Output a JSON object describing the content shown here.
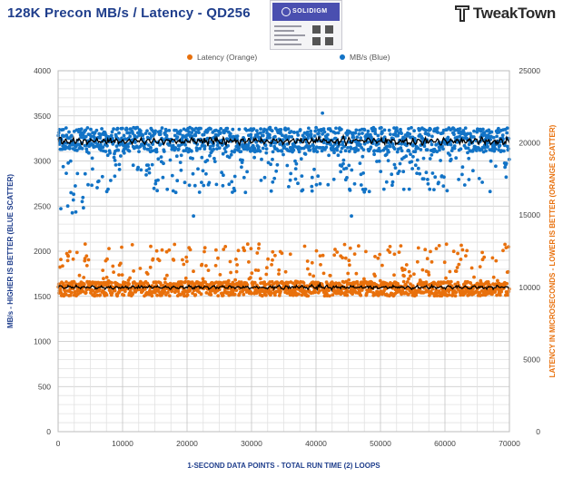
{
  "header": {
    "title": "128K Precon MB/s / Latency - QD256",
    "brand_logo_name": "TweakTown",
    "product_badge_text": "SOLIDIGM"
  },
  "colors": {
    "title": "#1f3e8c",
    "mbs_series": "#1273c6",
    "latency_series": "#e8700c",
    "average_line": "#000000",
    "grid": "#d0d0d0"
  },
  "chart_data": {
    "type": "scatter",
    "title": "128K Precon MB/s / Latency - QD256",
    "xlabel": "1-SECOND  DATA POINTS - TOTAL RUN TIME (2) LOOPS",
    "ylabel_left": "MB/s - HIGHER IS BETTER (BLUE SCATTER)",
    "ylabel_right": "LATENCY IN MICROSECONDS - LOWER IS BETTER (ORANGE SCATTER)",
    "xlim": [
      0,
      70000
    ],
    "ylim_left": [
      0,
      4000
    ],
    "ylim_right": [
      0,
      25000
    ],
    "x_ticks": [
      "0",
      "10000",
      "20000",
      "30000",
      "40000",
      "50000",
      "60000",
      "70000"
    ],
    "y_ticks_left": [
      "0",
      "500",
      "1000",
      "1500",
      "2000",
      "2500",
      "3000",
      "3500",
      "4000"
    ],
    "y_ticks_right": [
      "0",
      "5000",
      "10000",
      "15000",
      "20000",
      "25000"
    ],
    "grid": true,
    "legend_position": "top-center",
    "series": [
      {
        "name": "Latency (Orange)",
        "axis": "right",
        "typical_range": [
          9400,
          11200
        ],
        "average": 10000,
        "outlier_max": 13200
      },
      {
        "name": "MB/s (Blue)",
        "axis": "left",
        "typical_range": [
          2850,
          3450
        ],
        "average": 3220,
        "outlier_min": 2390,
        "outlier_max": 3530
      }
    ]
  }
}
